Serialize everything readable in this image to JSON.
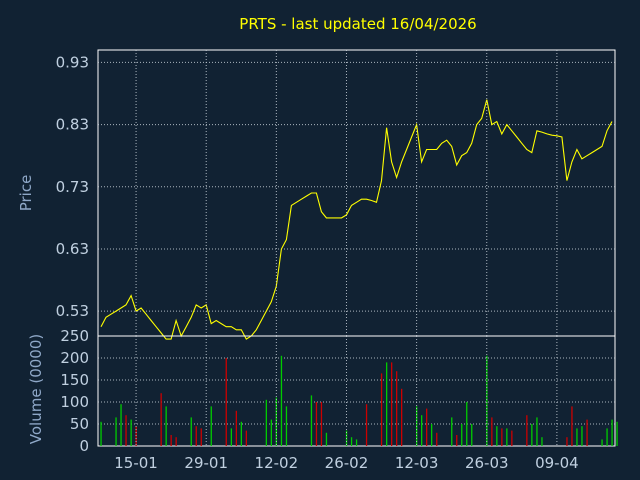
{
  "chart_data": [
    {
      "type": "line",
      "title": "PRTS - last updated 16/04/2026",
      "ylabel": "Price",
      "ylim": [
        0.49,
        0.95
      ],
      "y_ticks": [
        "0.93",
        "0.83",
        "0.73",
        "0.63",
        "0.53"
      ],
      "y_tick_values": [
        0.93,
        0.83,
        0.73,
        0.63,
        0.53
      ],
      "line_color": "#ffff00",
      "grid": true,
      "series": [
        {
          "values": [
            0.505,
            0.52,
            0.525,
            0.53,
            0.535,
            0.54,
            0.555,
            0.53,
            0.535,
            0.525,
            0.515,
            0.505,
            0.495,
            0.485,
            0.485,
            0.515,
            0.49,
            0.505,
            0.52,
            0.54,
            0.535,
            0.54,
            0.51,
            0.515,
            0.51,
            0.505,
            0.505,
            0.5,
            0.5,
            0.485,
            0.49,
            0.5,
            0.515,
            0.53,
            0.545,
            0.57,
            0.63,
            0.645,
            0.7,
            0.705,
            0.71,
            0.715,
            0.72,
            0.72,
            0.69,
            0.68,
            0.68,
            0.68,
            0.68,
            0.685,
            0.7,
            0.705,
            0.71,
            0.71,
            0.708,
            0.705,
            0.74,
            0.825,
            0.77,
            0.745,
            0.77,
            0.79,
            0.81,
            0.83,
            0.77,
            0.79,
            0.79,
            0.79,
            0.8,
            0.805,
            0.795,
            0.765,
            0.78,
            0.785,
            0.8,
            0.83,
            0.84,
            0.87,
            0.83,
            0.835,
            0.815,
            0.83,
            0.82,
            0.81,
            0.8,
            0.79,
            0.785,
            0.82,
            0.818,
            0.815,
            0.813,
            0.812,
            0.81,
            0.74,
            0.77,
            0.79,
            0.775,
            0.78,
            0.785,
            0.79,
            0.795,
            0.82,
            0.835
          ]
        }
      ]
    },
    {
      "type": "bar",
      "ylabel": "Volume (0000)",
      "ylim": [
        0,
        250
      ],
      "y_ticks": [
        "250",
        "200",
        "150",
        "100",
        "50",
        "0"
      ],
      "y_tick_values": [
        250,
        200,
        150,
        100,
        50,
        0
      ],
      "x_ticks": [
        "15-01",
        "29-01",
        "12-02",
        "26-02",
        "12-03",
        "26-03",
        "09-04"
      ],
      "x_tick_positions": [
        7,
        21,
        35,
        49,
        63,
        77,
        91
      ],
      "up_color": "#00cc00",
      "down_color": "#cc0000",
      "grid": true,
      "series": [
        {
          "values": [
            55,
            0,
            0,
            65,
            95,
            70,
            60,
            45,
            0,
            0,
            0,
            0,
            120,
            90,
            25,
            20,
            0,
            0,
            65,
            45,
            40,
            0,
            90,
            0,
            0,
            200,
            40,
            80,
            55,
            35,
            0,
            0,
            0,
            105,
            60,
            110,
            205,
            90,
            0,
            0,
            0,
            0,
            115,
            100,
            100,
            30,
            0,
            0,
            0,
            35,
            20,
            15,
            0,
            95,
            0,
            0,
            165,
            190,
            190,
            170,
            130,
            0,
            0,
            90,
            70,
            85,
            50,
            30,
            0,
            0,
            65,
            25,
            50,
            100,
            50,
            0,
            0,
            205,
            65,
            45,
            40,
            40,
            35,
            0,
            0,
            70,
            50,
            65,
            20,
            0,
            0,
            0,
            0,
            20,
            90,
            40,
            45,
            60,
            0,
            0,
            15,
            40,
            60,
            55
          ],
          "colors": [
            "g",
            "n",
            "n",
            "g",
            "g",
            "r",
            "g",
            "r",
            "n",
            "n",
            "n",
            "n",
            "r",
            "g",
            "r",
            "r",
            "n",
            "n",
            "g",
            "r",
            "r",
            "n",
            "g",
            "n",
            "n",
            "r",
            "g",
            "r",
            "g",
            "r",
            "n",
            "n",
            "n",
            "g",
            "g",
            "g",
            "g",
            "g",
            "n",
            "n",
            "n",
            "n",
            "g",
            "r",
            "r",
            "g",
            "n",
            "n",
            "n",
            "g",
            "g",
            "g",
            "n",
            "r",
            "n",
            "n",
            "r",
            "g",
            "r",
            "r",
            "r",
            "n",
            "n",
            "g",
            "g",
            "r",
            "g",
            "r",
            "n",
            "n",
            "g",
            "r",
            "g",
            "g",
            "g",
            "n",
            "n",
            "g",
            "r",
            "g",
            "r",
            "g",
            "r",
            "n",
            "n",
            "r",
            "g",
            "g",
            "g",
            "n",
            "n",
            "n",
            "n",
            "r",
            "r",
            "g",
            "g",
            "r",
            "n",
            "n",
            "g",
            "g",
            "g",
            "g"
          ]
        }
      ]
    }
  ]
}
